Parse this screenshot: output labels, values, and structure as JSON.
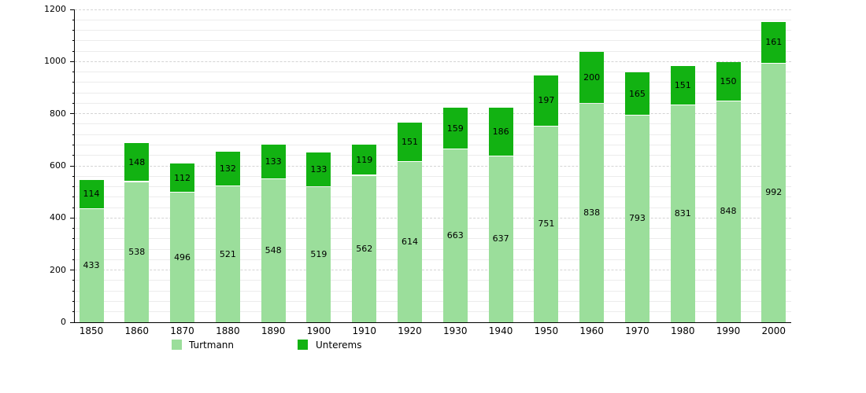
{
  "chart_data": {
    "type": "bar",
    "stacked": true,
    "title": "",
    "xlabel": "",
    "ylabel": "",
    "categories": [
      "1850",
      "1860",
      "1870",
      "1880",
      "1890",
      "1900",
      "1910",
      "1920",
      "1930",
      "1940",
      "1950",
      "1960",
      "1970",
      "1980",
      "1990",
      "2000"
    ],
    "series": [
      {
        "name": "Turtmann",
        "color": "#9BDE9B",
        "values": [
          433,
          538,
          496,
          521,
          548,
          519,
          562,
          614,
          663,
          637,
          751,
          838,
          793,
          831,
          848,
          992
        ]
      },
      {
        "name": "Unterems",
        "color": "#12B212",
        "values": [
          114,
          148,
          112,
          132,
          133,
          133,
          119,
          151,
          159,
          186,
          197,
          200,
          165,
          151,
          150,
          161
        ]
      }
    ],
    "totals": [
      547,
      686,
      608,
      653,
      681,
      652,
      681,
      765,
      822,
      823,
      948,
      1038,
      958,
      982,
      998,
      1153
    ],
    "ylim": [
      0,
      1200
    ],
    "y_major_step": 200,
    "y_minor_step": 40,
    "y_tick_labels": [
      "0",
      "200",
      "400",
      "600",
      "800",
      "1000",
      "1200"
    ],
    "grid": true,
    "legend_position": "bottom",
    "axis_color": "#000000",
    "grid_minor_color": "#ececec",
    "grid_major_color": "#d4d4d4",
    "background_color": "#ffffff"
  }
}
